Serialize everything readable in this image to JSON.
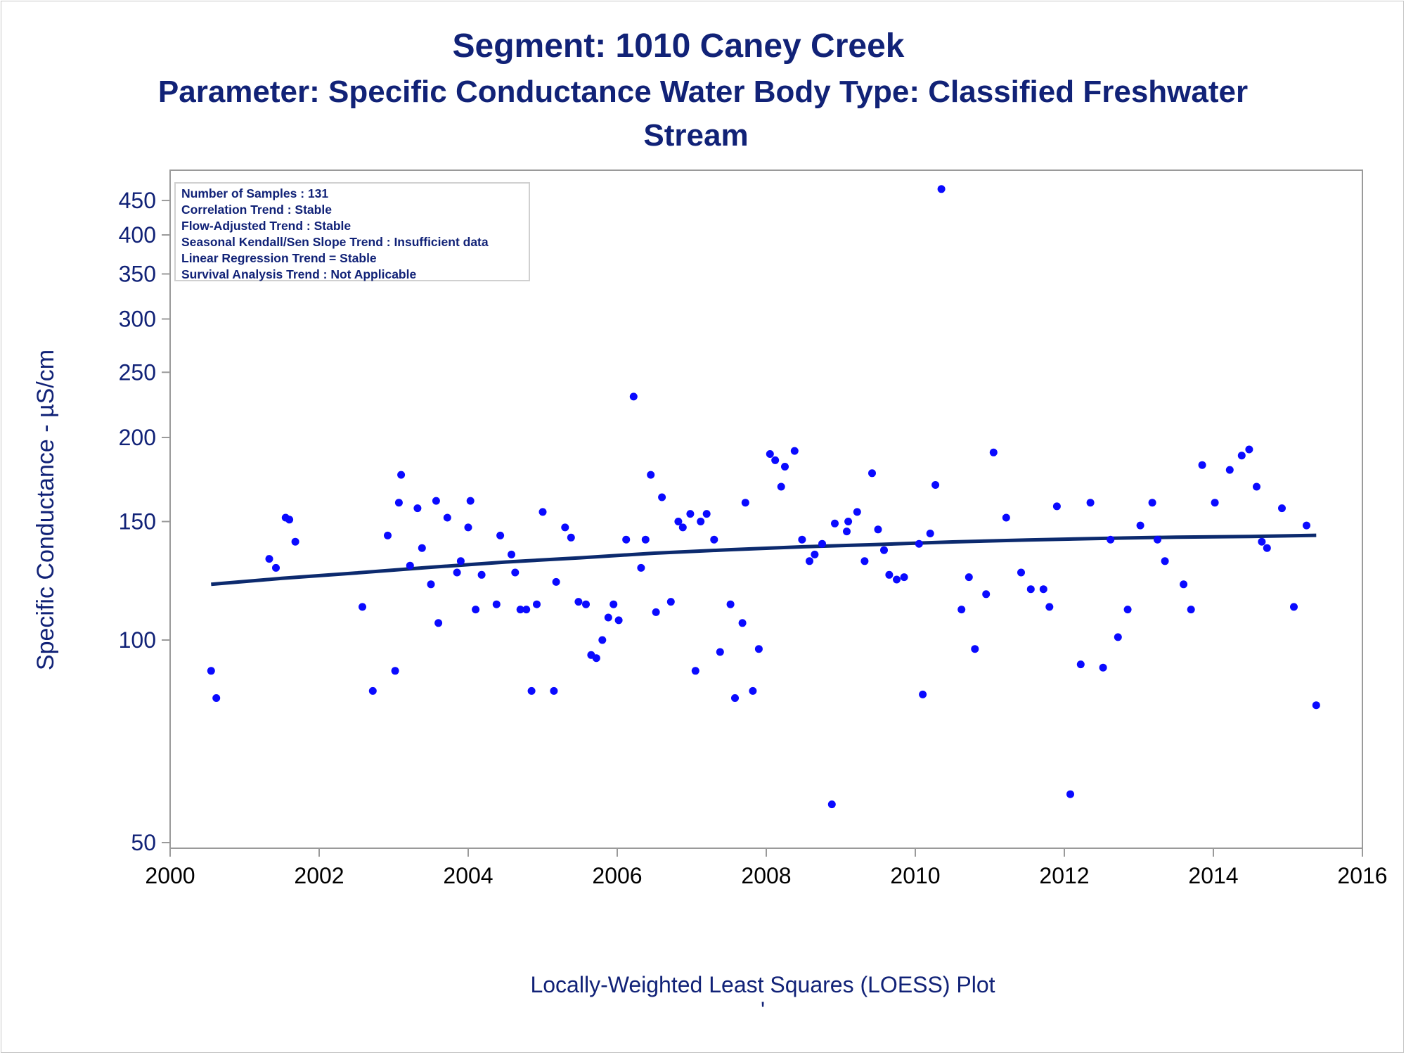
{
  "titles": {
    "line1": "Segment: 1010  Caney Creek",
    "line2": "Parameter: Specific Conductance   Water Body Type: Classified Freshwater",
    "line3": "Stream"
  },
  "footnote": "Locally-Weighted Least Squares (LOESS) Plot",
  "footnote_mark": "'",
  "stats": [
    "Number of Samples : 131",
    "Correlation Trend : Stable",
    "Flow-Adjusted Trend : Stable",
    "Seasonal Kendall/Sen Slope Trend : Insufficient data",
    "Linear Regression Trend = Stable",
    "Survival Analysis Trend : Not Applicable"
  ],
  "colors": {
    "title": "#112277",
    "points": "#0a0aff",
    "loess_line": "#0c2a6e",
    "axis": "#9a9a9a"
  },
  "chart_data": {
    "type": "scatter",
    "ylabel": "Specific Conductance -  µS/cm",
    "xlabel": "",
    "y_scale": "log",
    "xlim": [
      2000,
      2016
    ],
    "ylim": [
      48,
      480
    ],
    "xticks": [
      2000,
      2002,
      2004,
      2006,
      2008,
      2010,
      2012,
      2014,
      2016
    ],
    "yticks": [
      50,
      100,
      150,
      200,
      250,
      300,
      350,
      400,
      450
    ],
    "grid": false,
    "legend": "none",
    "series": [
      {
        "name": "",
        "type": "scatter",
        "points": [
          [
            2000.55,
            90
          ],
          [
            2000.62,
            82
          ],
          [
            2001.33,
            132
          ],
          [
            2001.42,
            128
          ],
          [
            2001.55,
            152
          ],
          [
            2001.6,
            151
          ],
          [
            2001.68,
            140
          ],
          [
            2002.58,
            112
          ],
          [
            2002.72,
            84
          ],
          [
            2002.92,
            143
          ],
          [
            2003.02,
            90
          ],
          [
            2003.1,
            176
          ],
          [
            2003.07,
            160
          ],
          [
            2003.22,
            129
          ],
          [
            2003.32,
            157
          ],
          [
            2003.38,
            137
          ],
          [
            2003.5,
            121
          ],
          [
            2003.57,
            161
          ],
          [
            2003.6,
            106
          ],
          [
            2003.72,
            152
          ],
          [
            2003.85,
            126
          ],
          [
            2003.9,
            131
          ],
          [
            2004.0,
            147
          ],
          [
            2004.03,
            161
          ],
          [
            2004.1,
            111
          ],
          [
            2004.18,
            125
          ],
          [
            2004.38,
            113
          ],
          [
            2004.43,
            143
          ],
          [
            2004.58,
            134
          ],
          [
            2004.63,
            126
          ],
          [
            2004.7,
            111
          ],
          [
            2004.78,
            111
          ],
          [
            2004.85,
            84
          ],
          [
            2004.92,
            113
          ],
          [
            2005.0,
            155
          ],
          [
            2005.15,
            84
          ],
          [
            2005.18,
            122
          ],
          [
            2005.3,
            147
          ],
          [
            2005.38,
            142
          ],
          [
            2005.48,
            114
          ],
          [
            2005.58,
            113
          ],
          [
            2005.65,
            95
          ],
          [
            2005.72,
            94
          ],
          [
            2005.8,
            100
          ],
          [
            2005.88,
            108
          ],
          [
            2005.95,
            113
          ],
          [
            2006.02,
            107
          ],
          [
            2006.12,
            141
          ],
          [
            2006.22,
            230
          ],
          [
            2006.32,
            128
          ],
          [
            2006.38,
            141
          ],
          [
            2006.45,
            176
          ],
          [
            2006.52,
            110
          ],
          [
            2006.6,
            163
          ],
          [
            2006.72,
            114
          ],
          [
            2006.82,
            150
          ],
          [
            2006.88,
            147
          ],
          [
            2006.98,
            154
          ],
          [
            2007.05,
            90
          ],
          [
            2007.12,
            150
          ],
          [
            2007.2,
            154
          ],
          [
            2007.3,
            141
          ],
          [
            2007.38,
            96
          ],
          [
            2007.52,
            113
          ],
          [
            2007.58,
            82
          ],
          [
            2007.68,
            106
          ],
          [
            2007.72,
            160
          ],
          [
            2007.82,
            84
          ],
          [
            2007.9,
            97
          ],
          [
            2008.05,
            189
          ],
          [
            2008.12,
            185
          ],
          [
            2008.2,
            169
          ],
          [
            2008.25,
            181
          ],
          [
            2008.38,
            191
          ],
          [
            2008.48,
            141
          ],
          [
            2008.58,
            131
          ],
          [
            2008.65,
            134
          ],
          [
            2008.75,
            139
          ],
          [
            2008.88,
            57
          ],
          [
            2008.92,
            149
          ],
          [
            2009.08,
            145
          ],
          [
            2009.1,
            150
          ],
          [
            2009.22,
            155
          ],
          [
            2009.32,
            131
          ],
          [
            2009.42,
            177
          ],
          [
            2009.5,
            146
          ],
          [
            2009.58,
            136
          ],
          [
            2009.65,
            125
          ],
          [
            2009.75,
            123
          ],
          [
            2009.85,
            124
          ],
          [
            2010.05,
            139
          ],
          [
            2010.1,
            83
          ],
          [
            2010.2,
            144
          ],
          [
            2010.27,
            170
          ],
          [
            2010.35,
            468
          ],
          [
            2010.62,
            111
          ],
          [
            2010.72,
            124
          ],
          [
            2010.8,
            97
          ],
          [
            2010.95,
            117
          ],
          [
            2011.05,
            190
          ],
          [
            2011.22,
            152
          ],
          [
            2011.42,
            126
          ],
          [
            2011.55,
            119
          ],
          [
            2011.72,
            119
          ],
          [
            2011.8,
            112
          ],
          [
            2011.9,
            158
          ],
          [
            2012.08,
            59
          ],
          [
            2012.22,
            92
          ],
          [
            2012.35,
            160
          ],
          [
            2012.52,
            91
          ],
          [
            2012.62,
            141
          ],
          [
            2012.72,
            101
          ],
          [
            2012.85,
            111
          ],
          [
            2013.02,
            148
          ],
          [
            2013.18,
            160
          ],
          [
            2013.25,
            141
          ],
          [
            2013.35,
            131
          ],
          [
            2013.6,
            121
          ],
          [
            2013.7,
            111
          ],
          [
            2013.85,
            182
          ],
          [
            2014.02,
            160
          ],
          [
            2014.22,
            179
          ],
          [
            2014.38,
            188
          ],
          [
            2014.48,
            192
          ],
          [
            2014.58,
            169
          ],
          [
            2014.65,
            140
          ],
          [
            2014.72,
            137
          ],
          [
            2014.92,
            157
          ],
          [
            2015.08,
            112
          ],
          [
            2015.25,
            148
          ],
          [
            2015.38,
            80
          ]
        ]
      },
      {
        "name": "",
        "type": "line",
        "points": [
          [
            2000.55,
            121
          ],
          [
            2001.5,
            123.5
          ],
          [
            2002.5,
            125.8
          ],
          [
            2003.5,
            128.3
          ],
          [
            2004.5,
            130.6
          ],
          [
            2005.5,
            132.5
          ],
          [
            2006.5,
            134.6
          ],
          [
            2007.5,
            136.2
          ],
          [
            2008.5,
            137.6
          ],
          [
            2009.5,
            138.7
          ],
          [
            2010.5,
            139.9
          ],
          [
            2011.5,
            140.8
          ],
          [
            2012.5,
            141.6
          ],
          [
            2013.5,
            142.2
          ],
          [
            2014.5,
            142.5
          ],
          [
            2015.38,
            143.1
          ]
        ]
      }
    ]
  }
}
